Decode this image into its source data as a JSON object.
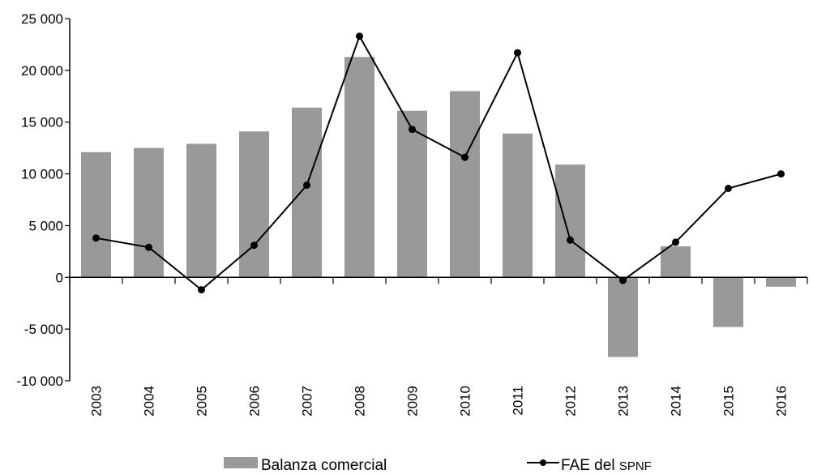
{
  "chart_data": {
    "type": "bar",
    "title": "",
    "xlabel": "",
    "ylabel": "",
    "ylim": [
      -10000,
      25000
    ],
    "yticks": [
      25000,
      20000,
      15000,
      10000,
      5000,
      0,
      -5000,
      -10000
    ],
    "ytick_labels": [
      "25 000",
      "20 000",
      "15 000",
      "10 000",
      "5 000",
      "0",
      "-5 000",
      "-10 000"
    ],
    "categories": [
      "2003",
      "2004",
      "2005",
      "2006",
      "2007",
      "2008",
      "2009",
      "2010",
      "2011",
      "2012",
      "2013",
      "2014",
      "2015",
      "2016"
    ],
    "series": [
      {
        "name": "Balanza comercial",
        "kind": "bar",
        "color": "#999999",
        "values": [
          12100,
          12500,
          12900,
          14100,
          16400,
          21300,
          16100,
          18000,
          13900,
          10900,
          -7700,
          3000,
          -4800,
          -900
        ]
      },
      {
        "name_main": "FAE del ",
        "name_sub": "SPNF",
        "kind": "line",
        "color": "#000000",
        "values": [
          3800,
          2900,
          -1200,
          3100,
          8900,
          23300,
          14300,
          11600,
          21700,
          3600,
          -300,
          3400,
          8600,
          10000
        ]
      }
    ],
    "legend_position": "bottom",
    "grid": false
  }
}
